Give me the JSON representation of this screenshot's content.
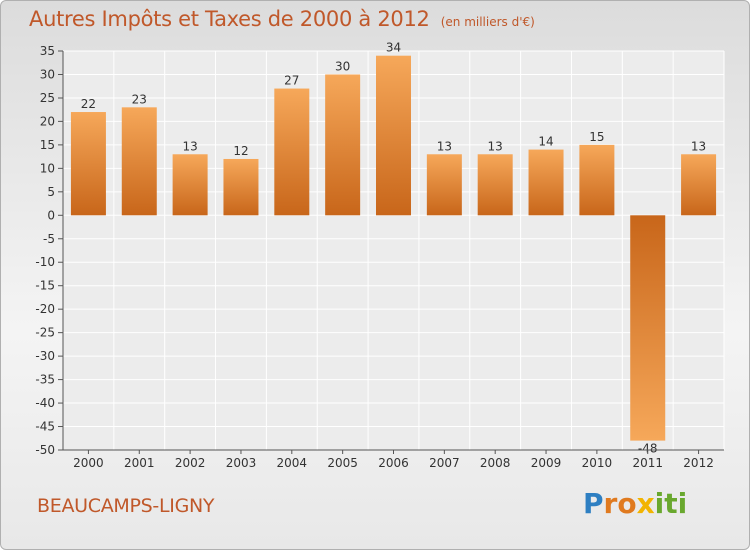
{
  "chart_data": {
    "type": "bar",
    "title": "Autres Impôts et Taxes de 2000 à 2012",
    "subtitle": "(en milliers d'€)",
    "categories": [
      "2000",
      "2001",
      "2002",
      "2003",
      "2004",
      "2005",
      "2006",
      "2007",
      "2008",
      "2009",
      "2010",
      "2011",
      "2012"
    ],
    "values": [
      22,
      23,
      13,
      12,
      27,
      30,
      34,
      13,
      13,
      14,
      15,
      -48,
      13
    ],
    "ylim": [
      -50,
      35
    ],
    "yticks": [
      35,
      30,
      25,
      20,
      15,
      10,
      5,
      0,
      -5,
      -10,
      -15,
      -20,
      -25,
      -30,
      -35,
      -40,
      -45,
      -50
    ],
    "grid": true,
    "xlabel": "",
    "ylabel": ""
  },
  "place_name": "BEAUCAMPS-LIGNY",
  "logo": {
    "letters": [
      "P",
      "r",
      "o",
      "x",
      "i",
      "t",
      "i"
    ],
    "colors": [
      "#2e7fc2",
      "#e07a1f",
      "#e07a1f",
      "#f2b400",
      "#69a82e",
      "#69a82e",
      "#69a82e"
    ]
  },
  "colors": {
    "bar_light": "#f6a85a",
    "bar_dark": "#c8661a",
    "accent": "#c0582a"
  }
}
